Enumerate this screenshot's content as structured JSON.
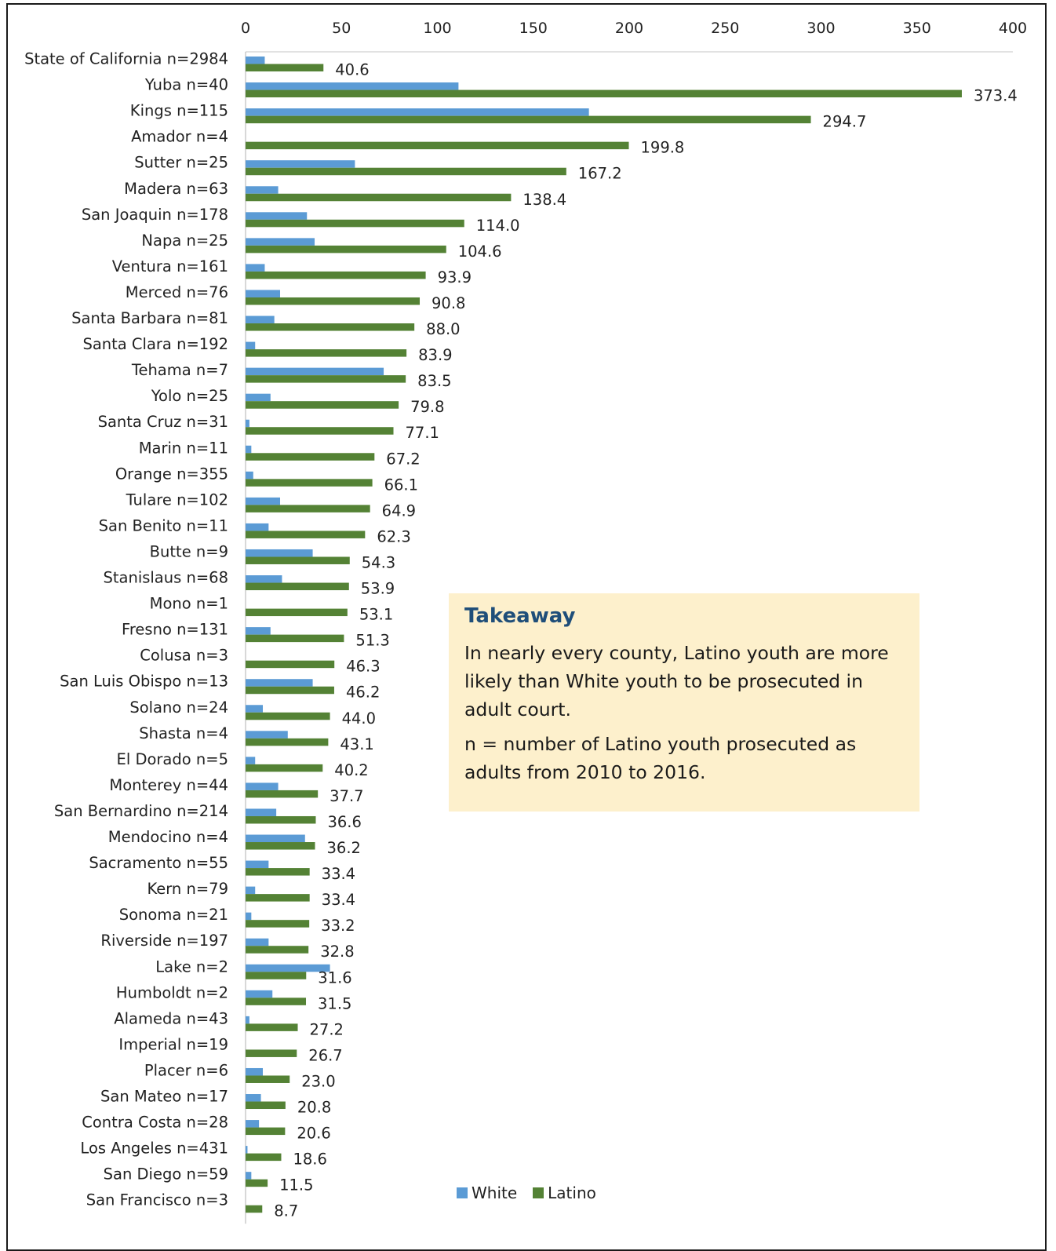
{
  "chart_data": {
    "type": "bar",
    "orientation": "horizontal",
    "xlim": [
      0,
      400
    ],
    "x_ticks": [
      0,
      50,
      100,
      150,
      200,
      250,
      300,
      350,
      400
    ],
    "grid": false,
    "legend_position": "bottom",
    "categories": [
      "State of California n=2984",
      "Yuba n=40",
      "Kings n=115",
      "Amador n=4",
      "Sutter n=25",
      "Madera n=63",
      "San Joaquin n=178",
      "Napa n=25",
      "Ventura n=161",
      "Merced n=76",
      "Santa Barbara n=81",
      "Santa Clara n=192",
      "Tehama n=7",
      "Yolo n=25",
      "Santa Cruz n=31",
      "Marin n=11",
      "Orange n=355",
      "Tulare n=102",
      "San Benito n=11",
      "Butte n=9",
      "Stanislaus n=68",
      "Mono n=1",
      "Fresno n=131",
      "Colusa n=3",
      "San Luis Obispo n=13",
      "Solano n=24",
      "Shasta n=4",
      "El Dorado n=5",
      "Monterey n=44",
      "San Bernardino n=214",
      "Mendocino n=4",
      "Sacramento n=55",
      "Kern n=79",
      "Sonoma n=21",
      "Riverside n=197",
      "Lake n=2",
      "Humboldt n=2",
      "Alameda n=43",
      "Imperial n=19",
      "Placer n=6",
      "San Mateo n=17",
      "Contra Costa n=28",
      "Los Angeles n=431",
      "San Diego n=59",
      "San Francisco n=3"
    ],
    "series": [
      {
        "name": "White",
        "color": "#5b9bd5",
        "values": [
          10,
          111,
          179,
          0,
          57,
          17,
          32,
          36,
          10,
          18,
          15,
          5,
          72,
          13,
          2,
          3,
          4,
          18,
          12,
          35,
          19,
          0,
          13,
          0,
          35,
          9,
          22,
          5,
          17,
          16,
          31,
          12,
          5,
          3,
          12,
          44,
          14,
          2,
          0,
          9,
          8,
          7,
          1,
          3,
          0
        ]
      },
      {
        "name": "Latino",
        "color": "#548235",
        "values": [
          40.6,
          373.4,
          294.7,
          199.8,
          167.2,
          138.4,
          114.0,
          104.6,
          93.9,
          90.8,
          88.0,
          83.9,
          83.5,
          79.8,
          77.1,
          67.2,
          66.1,
          64.9,
          62.3,
          54.3,
          53.9,
          53.1,
          51.3,
          46.3,
          46.2,
          44.0,
          43.1,
          40.2,
          37.7,
          36.6,
          36.2,
          33.4,
          33.4,
          33.2,
          32.8,
          31.6,
          31.5,
          27.2,
          26.7,
          23.0,
          20.8,
          20.6,
          18.6,
          11.5,
          8.7
        ],
        "labels": [
          "40.6",
          "373.4",
          "294.7",
          "199.8",
          "167.2",
          "138.4",
          "114.0",
          "104.6",
          "93.9",
          "90.8",
          "88.0",
          "83.9",
          "83.5",
          "79.8",
          "77.1",
          "67.2",
          "66.1",
          "64.9",
          "62.3",
          "54.3",
          "53.9",
          "53.1",
          "51.3",
          "46.3",
          "46.2",
          "44.0",
          "43.1",
          "40.2",
          "37.7",
          "36.6",
          "36.2",
          "33.4",
          "33.4",
          "33.2",
          "32.8",
          "31.6",
          "31.5",
          "27.2",
          "26.7",
          "23.0",
          "20.8",
          "20.6",
          "18.6",
          "11.5",
          "8.7"
        ]
      }
    ]
  },
  "takeaway": {
    "title": "Takeaway",
    "body": "In nearly every county, Latino youth are more likely than White youth to be prosecuted in adult court.",
    "note": "n = number of Latino youth prosecuted as adults  from 2010 to 2016."
  },
  "legend": {
    "white_label": "White",
    "latino_label": "Latino"
  }
}
